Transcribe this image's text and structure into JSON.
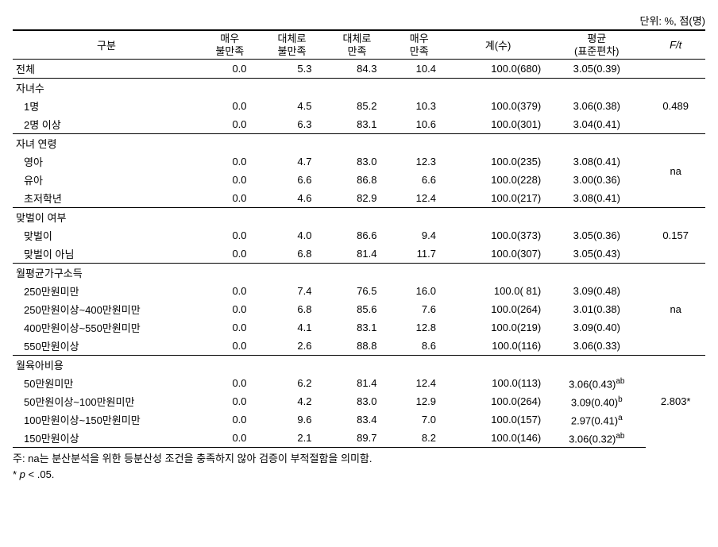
{
  "unit": "단위: %, 점(명)",
  "headers": {
    "category": "구분",
    "col1": "매우\n불만족",
    "col2": "대체로\n불만족",
    "col3": "대체로\n만족",
    "col4": "매우\n만족",
    "col5": "계(수)",
    "col6": "평균\n(표준편차)",
    "col7": "F/t"
  },
  "total": {
    "label": "전체",
    "c1": "0.0",
    "c2": "5.3",
    "c3": "84.3",
    "c4": "10.4",
    "c5": "100.0(680)",
    "c6": "3.05(0.39)",
    "c7": ""
  },
  "groups": [
    {
      "label": "자녀수",
      "ft": "0.489",
      "rows": [
        {
          "label": "1명",
          "c1": "0.0",
          "c2": "4.5",
          "c3": "85.2",
          "c4": "10.3",
          "c5": "100.0(379)",
          "c6": "3.06(0.38)"
        },
        {
          "label": "2명 이상",
          "c1": "0.0",
          "c2": "6.3",
          "c3": "83.1",
          "c4": "10.6",
          "c5": "100.0(301)",
          "c6": "3.04(0.41)"
        }
      ]
    },
    {
      "label": "자녀 연령",
      "ft": "na",
      "rows": [
        {
          "label": "영아",
          "c1": "0.0",
          "c2": "4.7",
          "c3": "83.0",
          "c4": "12.3",
          "c5": "100.0(235)",
          "c6": "3.08(0.41)"
        },
        {
          "label": "유아",
          "c1": "0.0",
          "c2": "6.6",
          "c3": "86.8",
          "c4": "6.6",
          "c5": "100.0(228)",
          "c6": "3.00(0.36)"
        },
        {
          "label": "초저학년",
          "c1": "0.0",
          "c2": "4.6",
          "c3": "82.9",
          "c4": "12.4",
          "c5": "100.0(217)",
          "c6": "3.08(0.41)"
        }
      ]
    },
    {
      "label": "맞벌이 여부",
      "ft": "0.157",
      "rows": [
        {
          "label": "맞벌이",
          "c1": "0.0",
          "c2": "4.0",
          "c3": "86.6",
          "c4": "9.4",
          "c5": "100.0(373)",
          "c6": "3.05(0.36)"
        },
        {
          "label": "맞벌이 아님",
          "c1": "0.0",
          "c2": "6.8",
          "c3": "81.4",
          "c4": "11.7",
          "c5": "100.0(307)",
          "c6": "3.05(0.43)"
        }
      ]
    },
    {
      "label": "월평균가구소득",
      "ft": "na",
      "rows": [
        {
          "label": "250만원미만",
          "c1": "0.0",
          "c2": "7.4",
          "c3": "76.5",
          "c4": "16.0",
          "c5": "100.0( 81)",
          "c6": "3.09(0.48)"
        },
        {
          "label": "250만원이상~400만원미만",
          "c1": "0.0",
          "c2": "6.8",
          "c3": "85.6",
          "c4": "7.6",
          "c5": "100.0(264)",
          "c6": "3.01(0.38)"
        },
        {
          "label": "400만원이상~550만원미만",
          "c1": "0.0",
          "c2": "4.1",
          "c3": "83.1",
          "c4": "12.8",
          "c5": "100.0(219)",
          "c6": "3.09(0.40)"
        },
        {
          "label": "550만원이상",
          "c1": "0.0",
          "c2": "2.6",
          "c3": "88.8",
          "c4": "8.6",
          "c5": "100.0(116)",
          "c6": "3.06(0.33)"
        }
      ]
    },
    {
      "label": "월육아비용",
      "ft": "2.803*",
      "rows": [
        {
          "label": "50만원미만",
          "c1": "0.0",
          "c2": "6.2",
          "c3": "81.4",
          "c4": "12.4",
          "c5": "100.0(113)",
          "c6": "3.06(0.43)",
          "sup": "ab"
        },
        {
          "label": "50만원이상~100만원미만",
          "c1": "0.0",
          "c2": "4.2",
          "c3": "83.0",
          "c4": "12.9",
          "c5": "100.0(264)",
          "c6": "3.09(0.40)",
          "sup": "b"
        },
        {
          "label": "100만원이상~150만원미만",
          "c1": "0.0",
          "c2": "9.6",
          "c3": "83.4",
          "c4": "7.0",
          "c5": "100.0(157)",
          "c6": "2.97(0.41)",
          "sup": "a"
        },
        {
          "label": "150만원이상",
          "c1": "0.0",
          "c2": "2.1",
          "c3": "89.7",
          "c4": "8.2",
          "c5": "100.0(146)",
          "c6": "3.06(0.32)",
          "sup": "ab"
        }
      ]
    }
  ],
  "notes": {
    "line1": "주: na는 분산분석을 위한 등분산성 조건을 충족하지 않아 검증이 부적절함을 의미함.",
    "line2_pre": "* ",
    "line2_var": "p",
    "line2_post": " < .05."
  }
}
